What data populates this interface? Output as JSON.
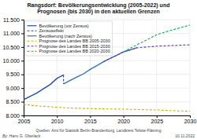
{
  "chart_data": {
    "type": "line",
    "title": "Rangsdorf: Bevölkerungsentwicklung (2005-2022) und\nPrognosen (bis 2030) in den aktuellen Grenzen",
    "xlim": [
      2005,
      2030
    ],
    "ylim": [
      8000,
      11500
    ],
    "xticks": [
      2005,
      2010,
      2015,
      2020,
      2025,
      2030
    ],
    "yticks": [
      {
        "value": 8000,
        "label": "8.000"
      },
      {
        "value": 8500,
        "label": "8.500"
      },
      {
        "value": 9000,
        "label": "9.000"
      },
      {
        "value": 9500,
        "label": "9.500"
      },
      {
        "value": 10000,
        "label": "10.000"
      },
      {
        "value": 10500,
        "label": "10.500"
      },
      {
        "value": 11000,
        "label": "11.000"
      },
      {
        "value": 11500,
        "label": "11.500"
      }
    ],
    "grid": true,
    "legend": "upper left",
    "series": [
      {
        "name": "Bevölkerung (vor Zensus)",
        "color": "#1f4e9c",
        "line_style": "solid",
        "x": [
          2005,
          2006,
          2007,
          2008,
          2009,
          2010,
          2010.5,
          2011
        ],
        "values": [
          8580,
          8700,
          8820,
          8980,
          9130,
          9350,
          9420,
          9480
        ]
      },
      {
        "name": "Zensuseffekt",
        "color": "#1f4e9c",
        "line_style": "dashed",
        "x": [
          2011,
          2011
        ],
        "values": [
          9480,
          9150
        ]
      },
      {
        "name": "Bevölkerung (nach Zensus)",
        "color": "#2e75b6",
        "line_style": "solid",
        "x": [
          2011,
          2012,
          2013,
          2014,
          2015,
          2016,
          2017,
          2018,
          2019,
          2020,
          2021,
          2022
        ],
        "values": [
          9150,
          9280,
          9400,
          9520,
          9680,
          9820,
          9960,
          10080,
          10200,
          10320,
          10390,
          10470
        ]
      },
      {
        "name": "Prognose des Landes BB 2005-2030",
        "color": "#c8b400",
        "line_style": "dashed",
        "x": [
          2005,
          2007,
          2010,
          2012,
          2015,
          2017,
          2020,
          2025,
          2030
        ],
        "values": [
          8400,
          8350,
          8300,
          8270,
          8250,
          8240,
          8230,
          8200,
          8150
        ]
      },
      {
        "name": "Prognose des Landes BB 2015-2030",
        "color": "#7030a0",
        "line_style": "dashed",
        "x": [
          2017,
          2020,
          2022,
          2025,
          2030
        ],
        "values": [
          9960,
          10320,
          10470,
          10530,
          10580
        ]
      },
      {
        "name": "Prognose des Landes BB 2020-2030",
        "color": "#00b050",
        "line_style": "dashed",
        "x": [
          2020,
          2022,
          2024,
          2025,
          2027,
          2030
        ],
        "values": [
          10320,
          10580,
          10820,
          10950,
          11100,
          11300
        ]
      }
    ],
    "annotations": [
      "By: Hans G. Oberlack",
      "Quellen: Amt für Statistik Berlin-Brandenburg, Landkreis Teltow-Fläming",
      "10.11.2022"
    ]
  }
}
